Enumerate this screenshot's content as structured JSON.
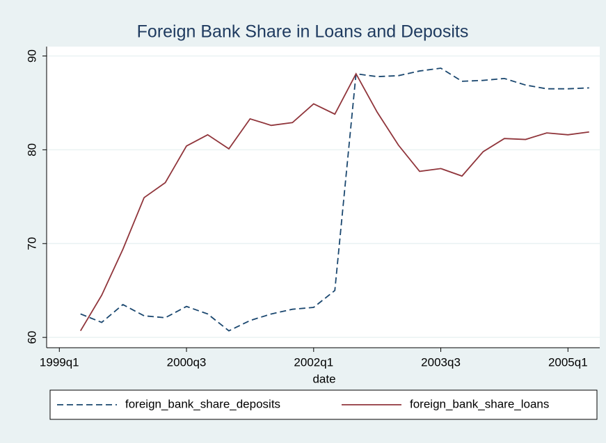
{
  "chart_data": {
    "type": "line",
    "title": "Foreign Bank Share in Loans and Deposits",
    "x_label": "date",
    "x": [
      157,
      158,
      159,
      160,
      161,
      162,
      163,
      164,
      165,
      166,
      167,
      168,
      169,
      170,
      171,
      172,
      173,
      174,
      175,
      176,
      177,
      178,
      179,
      180,
      181
    ],
    "series": [
      {
        "name": "foreign_bank_share_deposits",
        "color": "#1a476f",
        "dash": true,
        "values": [
          62.5,
          61.6,
          63.5,
          62.3,
          62.1,
          63.3,
          62.5,
          60.7,
          61.8,
          62.5,
          63.0,
          63.2,
          65.0,
          88.1,
          87.8,
          87.9,
          88.4,
          88.7,
          87.3,
          87.4,
          87.6,
          86.9,
          86.5,
          86.5,
          86.6
        ]
      },
      {
        "name": "foreign_bank_share_loans",
        "color": "#90353b",
        "dash": false,
        "values": [
          60.7,
          64.5,
          69.4,
          74.9,
          76.5,
          80.4,
          81.6,
          80.1,
          83.3,
          82.6,
          82.9,
          84.9,
          83.8,
          88.1,
          84.0,
          80.5,
          77.7,
          78.0,
          77.2,
          79.8,
          81.2,
          81.1,
          81.8,
          81.6,
          81.9
        ]
      }
    ],
    "xlim": [
      155.4,
      181.5
    ],
    "xticks": [
      {
        "value": 156,
        "label": "1999q1"
      },
      {
        "value": 162,
        "label": "2000q3"
      },
      {
        "value": 168,
        "label": "2002q1"
      },
      {
        "value": 174,
        "label": "2003q3"
      },
      {
        "value": 180,
        "label": "2005q1"
      }
    ],
    "ylim": [
      58.9,
      91
    ],
    "yticks": [
      60,
      70,
      80,
      90
    ],
    "grid": true,
    "legend": "bottom"
  }
}
